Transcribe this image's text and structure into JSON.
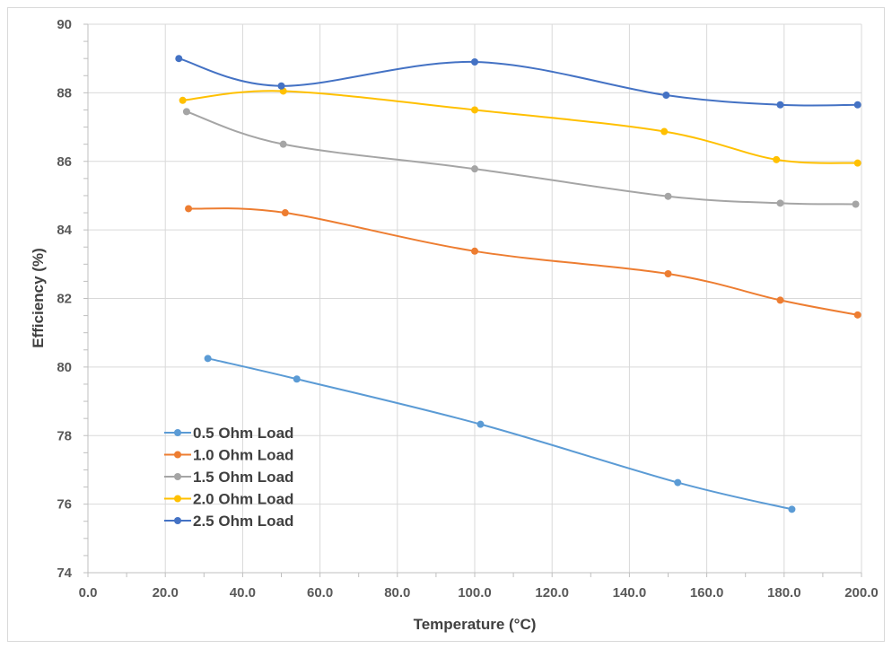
{
  "chart_data": {
    "type": "line",
    "title": "",
    "xlabel": "Temperature (°C)",
    "ylabel": "Efficiency (%)",
    "xlim": [
      0,
      200
    ],
    "ylim": [
      74,
      90
    ],
    "x_ticks": [
      "0.0",
      "20.0",
      "40.0",
      "60.0",
      "80.0",
      "100.0",
      "120.0",
      "140.0",
      "160.0",
      "180.0",
      "200.0"
    ],
    "y_ticks": [
      "74",
      "76",
      "78",
      "80",
      "82",
      "84",
      "86",
      "88",
      "90"
    ],
    "grid": "vertical and horizontal major gridlines",
    "legend_position": "bottom-left",
    "series": [
      {
        "name": "0.5 Ohm Load",
        "color": "#5B9BD5",
        "x": [
          31,
          54,
          101.5,
          152.5,
          182
        ],
        "y": [
          80.25,
          79.65,
          78.33,
          76.63,
          75.85
        ]
      },
      {
        "name": "1.0 Ohm Load",
        "color": "#ED7D31",
        "x": [
          26,
          51,
          100,
          150,
          179,
          199
        ],
        "y": [
          84.62,
          84.5,
          83.38,
          82.72,
          81.95,
          81.52
        ]
      },
      {
        "name": "1.5 Ohm Load",
        "color": "#A5A5A5",
        "x": [
          25.5,
          50.5,
          100,
          150,
          179,
          198.5
        ],
        "y": [
          87.45,
          86.5,
          85.78,
          84.98,
          84.78,
          84.75
        ]
      },
      {
        "name": "2.0 Ohm Load",
        "color": "#FFC000",
        "x": [
          24.5,
          50.5,
          100,
          149,
          178,
          199
        ],
        "y": [
          87.78,
          88.05,
          87.5,
          86.87,
          86.05,
          85.95
        ]
      },
      {
        "name": "2.5 Ohm Load",
        "color": "#4472C4",
        "x": [
          23.5,
          50,
          100,
          149.5,
          179,
          199
        ],
        "y": [
          89.0,
          88.2,
          88.9,
          87.93,
          87.65,
          87.65
        ]
      }
    ]
  }
}
